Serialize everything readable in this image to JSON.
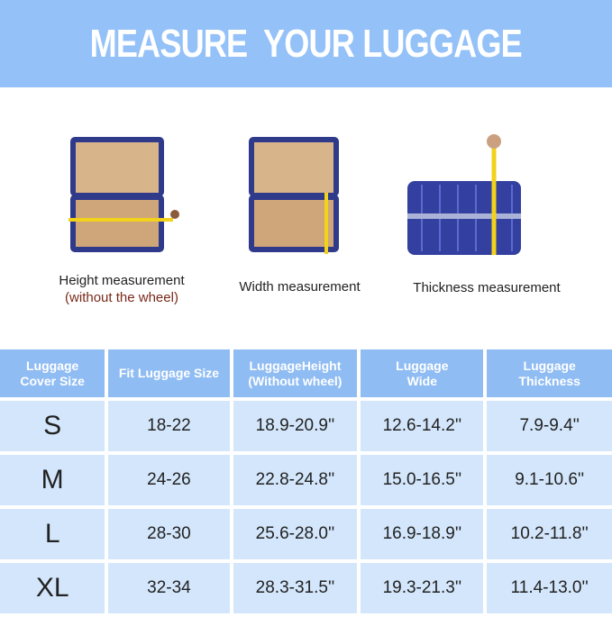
{
  "title": "MEASURE  YOUR LUGGAGE",
  "captions": {
    "height": "Height measurement",
    "height_note": "(without the wheel)",
    "width": "Width measurement",
    "thickness": "Thickness measurement"
  },
  "colors": {
    "banner": "#93c1f8",
    "header": "#8fbcf3",
    "cell": "#d3e6fb"
  },
  "table": {
    "headers": [
      [
        "Luggage",
        "Cover Size"
      ],
      [
        "Fit Luggage Size"
      ],
      [
        "LuggageHeight",
        "(Without wheel)"
      ],
      [
        "Luggage",
        "Wide"
      ],
      [
        "Luggage",
        "Thickness"
      ]
    ],
    "rows": [
      [
        "S",
        "18-22",
        "18.9-20.9''",
        "12.6-14.2''",
        "7.9-9.4''"
      ],
      [
        "M",
        "24-26",
        "22.8-24.8''",
        "15.0-16.5''",
        "9.1-10.6''"
      ],
      [
        "L",
        "28-30",
        "25.6-28.0''",
        "16.9-18.9''",
        "10.2-11.8''"
      ],
      [
        "XL",
        "32-34",
        "28.3-31.5''",
        "19.3-21.3''",
        "11.4-13.0''"
      ]
    ]
  }
}
